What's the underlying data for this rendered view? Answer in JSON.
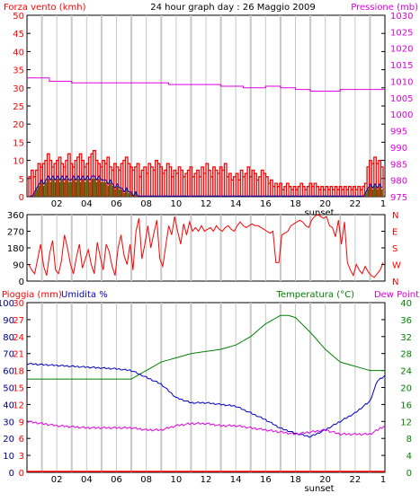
{
  "header": {
    "left_title": "Forza vento (kmh)",
    "center_title": "24 hour graph day : 26 Maggio 2009",
    "right_title": "Pressione (mb)"
  },
  "panel3_header": {
    "rain_label": "Pioggia (mm)",
    "humidity_label": "Umidita %",
    "temp_label": "Temperatura (°C)",
    "dew_label": "Dew Point"
  },
  "colors": {
    "wind": "#ff0000",
    "pressure": "#e000e0",
    "wind_green": "#008000",
    "wind_blue": "#0000c0",
    "direction": "#ff0000",
    "rain": "#ff0000",
    "humidity": "#0000c0",
    "temperature": "#008000",
    "dew_point": "#e000e0",
    "grid": "#c8c8c8",
    "frame": "#000000"
  },
  "chart_data": [
    {
      "type": "line",
      "name": "wind_pressure",
      "x_tick_labels": [
        "02",
        "04",
        "06",
        "08",
        "10",
        "12",
        "14",
        "16",
        "18",
        "20",
        "22",
        "1"
      ],
      "sunset_label": "sunset",
      "y_left_ticks": [
        "0",
        "5",
        "10",
        "15",
        "20",
        "25",
        "30",
        "35",
        "40",
        "45",
        "50"
      ],
      "ylim_left": [
        0,
        50
      ],
      "y_right_ticks": [
        "975",
        "980",
        "985",
        "990",
        "995",
        "1000",
        "1005",
        "1010",
        "1015",
        "1020",
        "1025",
        "1030"
      ],
      "ylim_right": [
        975,
        1030
      ],
      "pressure": {
        "x": [
          0,
          1.4,
          1.5,
          2,
          3,
          4,
          5,
          6,
          7,
          8,
          9,
          9.5,
          10,
          11,
          12,
          13,
          14,
          14.5,
          15,
          16,
          17,
          18,
          19,
          20,
          21,
          22,
          23,
          24
        ],
        "y": [
          1011,
          1011,
          1010,
          1010,
          1009.5,
          1009.5,
          1009.5,
          1009.5,
          1009.5,
          1009.5,
          1009.5,
          1009,
          1009,
          1009,
          1009,
          1008.5,
          1008.5,
          1008,
          1008,
          1008.5,
          1008,
          1007.5,
          1007,
          1007,
          1007.5,
          1007.5,
          1007.5,
          1007.5
        ]
      },
      "wind_gust_level": [
        5,
        7,
        5,
        7,
        9,
        8,
        9,
        10,
        12,
        10,
        8,
        9,
        10,
        11,
        9,
        8,
        10,
        12,
        9,
        8,
        10,
        11,
        12,
        10,
        8,
        9,
        11,
        12,
        13,
        10,
        9,
        8,
        10,
        9,
        11,
        8,
        7,
        9,
        8,
        7,
        9,
        10,
        11,
        9,
        8,
        7,
        8,
        9,
        5,
        7,
        8,
        6,
        9,
        8,
        7,
        10,
        9,
        8,
        6,
        7,
        9,
        8,
        5,
        7,
        6,
        8,
        7,
        5,
        6,
        7,
        8,
        5,
        6,
        7,
        5,
        8,
        6,
        9,
        7,
        5,
        8,
        7,
        6,
        8,
        7,
        9,
        5,
        6,
        4,
        5,
        6,
        4,
        7,
        5,
        6,
        8,
        5,
        7,
        6,
        4,
        5,
        7,
        6,
        5,
        3,
        4,
        2,
        3,
        2,
        3,
        1,
        2,
        3,
        2,
        1,
        2,
        1,
        2,
        3,
        2,
        1,
        2,
        3,
        2,
        3,
        2,
        1,
        2,
        1,
        2,
        1,
        2,
        1,
        2,
        1,
        2,
        1,
        2,
        1,
        2,
        1,
        2,
        1,
        2,
        1,
        2,
        3,
        8,
        10,
        9,
        11,
        9,
        10,
        8
      ],
      "wind_avg_level": [
        0,
        0,
        1,
        2,
        3,
        4,
        3,
        4,
        5,
        4,
        5,
        4,
        5,
        4,
        5,
        4,
        5,
        4,
        4,
        5,
        4,
        5,
        4,
        5,
        4,
        5,
        4,
        5,
        5,
        4,
        5,
        4,
        4,
        4,
        3,
        4,
        3,
        2,
        3,
        2,
        2,
        1,
        2,
        1,
        1,
        0,
        1,
        0,
        0,
        0,
        0,
        0,
        0,
        0,
        0,
        0,
        0,
        0,
        0,
        0,
        0,
        0,
        0,
        0,
        0,
        0,
        0,
        0,
        0,
        0,
        0,
        0,
        0,
        0,
        0,
        0,
        0,
        0,
        0,
        0,
        0,
        0,
        0,
        0,
        0,
        0,
        0,
        0,
        0,
        0,
        0,
        0,
        0,
        0,
        0,
        0,
        0,
        0,
        0,
        0,
        0,
        0,
        0,
        0,
        0,
        0,
        0,
        0,
        0,
        0,
        0,
        0,
        0,
        0,
        0,
        0,
        0,
        0,
        0,
        0,
        0,
        0,
        0,
        0,
        0,
        0,
        0,
        0,
        0,
        0,
        0,
        0,
        0,
        0,
        0,
        0,
        0,
        0,
        0,
        0,
        0,
        0,
        0,
        0,
        0,
        0,
        1,
        2,
        3,
        2,
        3,
        2,
        3,
        2
      ]
    },
    {
      "type": "line",
      "name": "wind_direction",
      "y_left_ticks": [
        "0",
        "90",
        "180",
        "270",
        "360"
      ],
      "ylim": [
        0,
        360
      ],
      "y_right_ticks": [
        "N",
        "W",
        "S",
        "E",
        "N"
      ],
      "direction_deg": [
        90,
        60,
        40,
        120,
        200,
        80,
        30,
        150,
        220,
        60,
        40,
        110,
        250,
        180,
        90,
        40,
        130,
        200,
        70,
        120,
        170,
        90,
        40,
        210,
        130,
        60,
        200,
        160,
        80,
        30,
        180,
        250,
        140,
        90,
        200,
        60,
        270,
        340,
        120,
        200,
        300,
        180,
        260,
        330,
        120,
        80,
        190,
        300,
        250,
        350,
        270,
        200,
        310,
        250,
        320,
        270,
        290,
        270,
        300,
        270,
        280,
        290,
        270,
        300,
        280,
        270,
        290,
        300,
        280,
        270,
        300,
        320,
        300,
        290,
        300,
        310,
        300,
        300,
        290,
        280,
        270,
        260,
        270,
        100,
        100,
        250,
        260,
        270,
        300,
        310,
        320,
        330,
        320,
        300,
        290,
        330,
        350,
        360,
        350,
        340,
        350,
        300,
        290,
        240,
        330,
        200,
        320,
        100,
        60,
        30,
        90,
        60,
        40,
        80,
        50,
        30,
        20,
        40,
        60,
        100
      ]
    },
    {
      "type": "line",
      "name": "temp_humidity",
      "sunset_label": "sunset",
      "y_left_ticks": [
        "0",
        "10",
        "20",
        "30",
        "40",
        "50",
        "60",
        "70",
        "80",
        "90",
        "100"
      ],
      "ylim_left": [
        0,
        100
      ],
      "y_left2_ticks": [
        "0",
        "3",
        "6",
        "9",
        "12",
        "15",
        "18",
        "21",
        "24",
        "27",
        "30"
      ],
      "ylim_left2": [
        0,
        30
      ],
      "y_right_ticks": [
        "0",
        "4",
        "8",
        "12",
        "16",
        "20",
        "24",
        "28",
        "32",
        "36",
        "40"
      ],
      "ylim_right": [
        0,
        40
      ],
      "temperature": {
        "x": [
          0,
          2,
          4,
          6,
          7,
          8,
          9,
          10,
          11,
          12,
          13,
          14,
          15,
          16,
          17,
          17.5,
          18,
          19,
          20,
          21,
          22,
          23,
          24
        ],
        "y": [
          22,
          22,
          22,
          22,
          22,
          24,
          26,
          27,
          28,
          28.5,
          29,
          30,
          32,
          35,
          37,
          37,
          36.5,
          33,
          29,
          26,
          25,
          24,
          24
        ]
      },
      "humidity": {
        "x": [
          0,
          2,
          4,
          6,
          7,
          8,
          9,
          10,
          11,
          12,
          13,
          14,
          15,
          16,
          17,
          18,
          19,
          20,
          21,
          22,
          23,
          23.5,
          24
        ],
        "y": [
          64,
          63,
          62,
          61,
          60,
          56,
          52,
          44,
          41,
          41,
          40,
          39,
          35,
          31,
          26,
          23,
          21,
          25,
          30,
          35,
          42,
          54,
          57
        ]
      },
      "dew_point": {
        "x": [
          0,
          2,
          4,
          6,
          7,
          8,
          9,
          10,
          11,
          12,
          13,
          14,
          15,
          16,
          17,
          18,
          19,
          20,
          21,
          22,
          23,
          24
        ],
        "y": [
          12,
          11,
          10.5,
          10.5,
          10.5,
          10,
          10,
          11,
          11.5,
          11.5,
          11,
          11,
          10.5,
          10,
          9.5,
          9,
          9.5,
          10,
          9,
          9,
          9,
          11
        ]
      },
      "rain": {
        "x": [
          0,
          24
        ],
        "y": [
          0,
          0
        ]
      }
    }
  ]
}
